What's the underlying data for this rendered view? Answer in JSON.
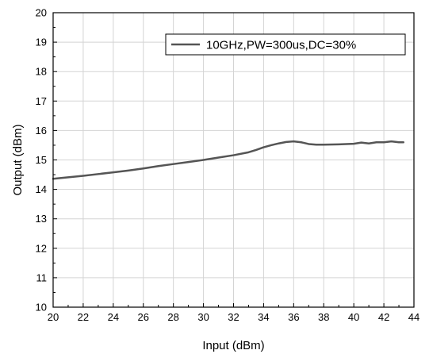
{
  "chart_data": {
    "type": "line",
    "title": "",
    "xlabel": "Input (dBm)",
    "ylabel": "Output (dBm)",
    "xlim": [
      20,
      44
    ],
    "ylim": [
      10,
      20
    ],
    "xticks": [
      "20",
      "22",
      "24",
      "26",
      "28",
      "30",
      "32",
      "34",
      "36",
      "38",
      "40",
      "42",
      "44"
    ],
    "yticks": [
      "10",
      "11",
      "12",
      "13",
      "14",
      "15",
      "16",
      "17",
      "18",
      "19",
      "20"
    ],
    "grid": true,
    "legend_position": "top-right",
    "series": [
      {
        "name": "10GHz,PW=300us,DC=30%",
        "color": "#555555",
        "x": [
          20,
          21,
          22,
          23,
          24,
          25,
          26,
          27,
          28,
          29,
          30,
          31,
          32,
          33,
          33.5,
          34,
          34.5,
          35,
          35.5,
          36,
          36.5,
          37,
          37.5,
          38,
          39,
          40,
          40.5,
          41,
          41.5,
          42,
          42.5,
          43,
          43.3
        ],
        "y": [
          14.36,
          14.41,
          14.46,
          14.52,
          14.58,
          14.64,
          14.71,
          14.79,
          14.86,
          14.93,
          15.0,
          15.08,
          15.16,
          15.26,
          15.34,
          15.43,
          15.5,
          15.56,
          15.61,
          15.63,
          15.6,
          15.54,
          15.52,
          15.52,
          15.53,
          15.55,
          15.59,
          15.56,
          15.6,
          15.6,
          15.63,
          15.6,
          15.6
        ]
      }
    ]
  }
}
